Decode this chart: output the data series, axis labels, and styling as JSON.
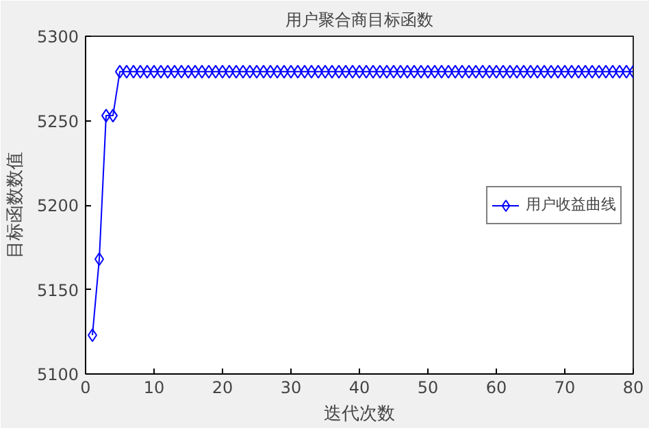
{
  "chart_data": {
    "type": "line",
    "title": "用户聚合商目标函数",
    "xlabel": "迭代次数",
    "ylabel": "目标函数数值",
    "x": [
      1,
      2,
      3,
      4,
      5,
      6,
      7,
      8,
      9,
      10,
      11,
      12,
      13,
      14,
      15,
      16,
      17,
      18,
      19,
      20,
      21,
      22,
      23,
      24,
      25,
      26,
      27,
      28,
      29,
      30,
      31,
      32,
      33,
      34,
      35,
      36,
      37,
      38,
      39,
      40,
      41,
      42,
      43,
      44,
      45,
      46,
      47,
      48,
      49,
      50,
      51,
      52,
      53,
      54,
      55,
      56,
      57,
      58,
      59,
      60,
      61,
      62,
      63,
      64,
      65,
      66,
      67,
      68,
      69,
      70,
      71,
      72,
      73,
      74,
      75,
      76,
      77,
      78,
      79,
      80
    ],
    "series": [
      {
        "name": "用户收益曲线",
        "color": "#0000ff",
        "values": [
          5123,
          5168,
          5253,
          5253,
          5279,
          5279,
          5279,
          5279,
          5279,
          5279,
          5279,
          5279,
          5279,
          5279,
          5279,
          5279,
          5279,
          5279,
          5279,
          5279,
          5279,
          5279,
          5279,
          5279,
          5279,
          5279,
          5279,
          5279,
          5279,
          5279,
          5279,
          5279,
          5279,
          5279,
          5279,
          5279,
          5279,
          5279,
          5279,
          5279,
          5279,
          5279,
          5279,
          5279,
          5279,
          5279,
          5279,
          5279,
          5279,
          5279,
          5279,
          5279,
          5279,
          5279,
          5279,
          5279,
          5279,
          5279,
          5279,
          5279,
          5279,
          5279,
          5279,
          5279,
          5279,
          5279,
          5279,
          5279,
          5279,
          5279,
          5279,
          5279,
          5279,
          5279,
          5279,
          5279,
          5279,
          5279,
          5279,
          5279
        ]
      }
    ],
    "xlim": [
      0,
      80
    ],
    "ylim": [
      5100,
      5300
    ],
    "xticks": [
      0,
      10,
      20,
      30,
      40,
      50,
      60,
      70,
      80
    ],
    "yticks": [
      5100,
      5150,
      5200,
      5250,
      5300
    ],
    "marker": "diamond",
    "line_style": "solid",
    "legend": "right",
    "grid": false
  }
}
